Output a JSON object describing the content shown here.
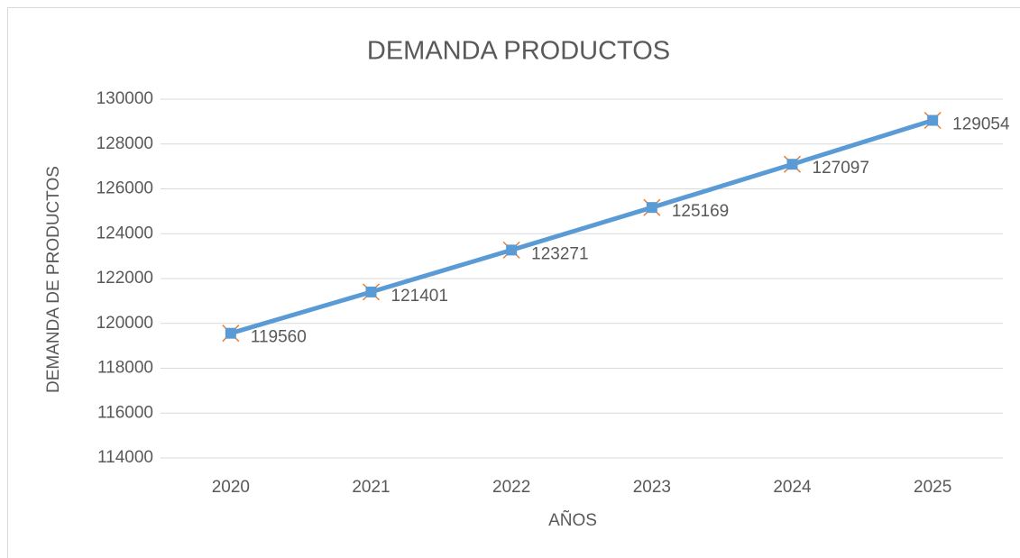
{
  "chart_data": {
    "type": "line",
    "title": "DEMANDA PRODUCTOS",
    "x_label": "AÑOS",
    "y_label": "DEMANDA DE PRODUCTOS",
    "categories": [
      "2020",
      "2021",
      "2022",
      "2023",
      "2024",
      "2025"
    ],
    "values": [
      119560,
      121401,
      123271,
      125169,
      127097,
      129054
    ],
    "color": "#5b9bd5",
    "marker_edge_color": "#ed7d31",
    "ylim": [
      114000,
      130000
    ],
    "yticks": [
      114000,
      116000,
      118000,
      120000,
      122000,
      124000,
      126000,
      128000,
      130000
    ],
    "grid": true,
    "data_labels": true
  }
}
